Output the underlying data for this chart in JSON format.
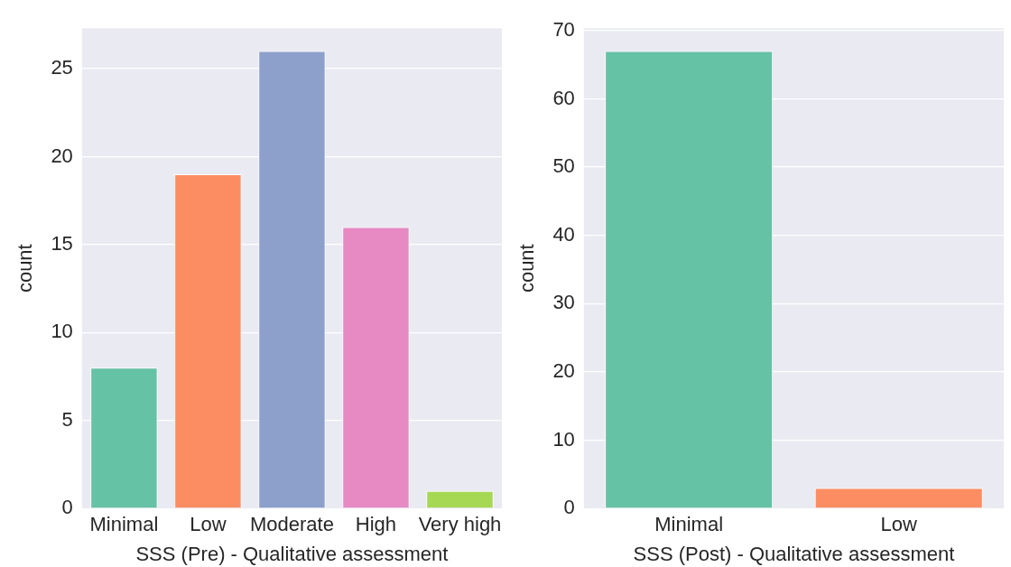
{
  "chart_data": [
    {
      "type": "bar",
      "xlabel": "SSS (Pre) - Qualitative assessment",
      "ylabel": "count",
      "categories": [
        "Minimal",
        "Low",
        "Moderate",
        "High",
        "Very high"
      ],
      "values": [
        8,
        19,
        26,
        16,
        1
      ],
      "colors": [
        "#66c2a5",
        "#fc8d62",
        "#8da0cb",
        "#e78ac3",
        "#a6d854"
      ],
      "ylim": [
        0,
        27.3
      ],
      "yticks": [
        0,
        5,
        10,
        15,
        20,
        25
      ],
      "grid": "y",
      "legend": false
    },
    {
      "type": "bar",
      "xlabel": "SSS (Post) - Qualitative assessment",
      "ylabel": "count",
      "categories": [
        "Minimal",
        "Low"
      ],
      "values": [
        67,
        3
      ],
      "colors": [
        "#66c2a5",
        "#fc8d62"
      ],
      "ylim": [
        0,
        70.35
      ],
      "yticks": [
        0,
        10,
        20,
        30,
        40,
        50,
        60,
        70
      ],
      "grid": "y",
      "legend": false
    }
  ]
}
